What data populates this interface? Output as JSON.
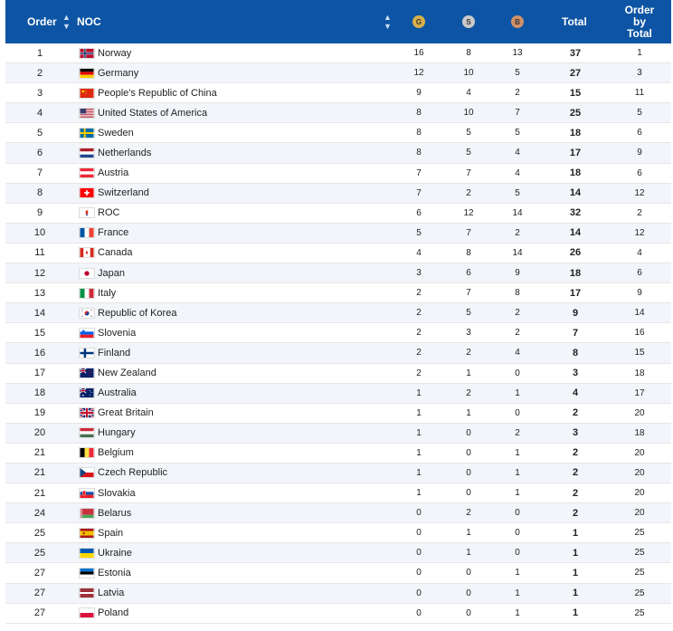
{
  "header": {
    "order": "Order",
    "noc": "NOC",
    "gold": "G",
    "silver": "S",
    "bronze": "B",
    "total": "Total",
    "order_by_total": "Order by Total",
    "sort_icon": "sort-icon"
  },
  "rows": [
    {
      "order": "1",
      "noc": "Norway",
      "g": "16",
      "s": "8",
      "b": "13",
      "total": "37",
      "obt": "1",
      "flag": "norway"
    },
    {
      "order": "2",
      "noc": "Germany",
      "g": "12",
      "s": "10",
      "b": "5",
      "total": "27",
      "obt": "3",
      "flag": "germany"
    },
    {
      "order": "3",
      "noc": "People's Republic of China",
      "g": "9",
      "s": "4",
      "b": "2",
      "total": "15",
      "obt": "11",
      "flag": "china"
    },
    {
      "order": "4",
      "noc": "United States of America",
      "g": "8",
      "s": "10",
      "b": "7",
      "total": "25",
      "obt": "5",
      "flag": "usa"
    },
    {
      "order": "5",
      "noc": "Sweden",
      "g": "8",
      "s": "5",
      "b": "5",
      "total": "18",
      "obt": "6",
      "flag": "sweden"
    },
    {
      "order": "6",
      "noc": "Netherlands",
      "g": "8",
      "s": "5",
      "b": "4",
      "total": "17",
      "obt": "9",
      "flag": "netherlands"
    },
    {
      "order": "7",
      "noc": "Austria",
      "g": "7",
      "s": "7",
      "b": "4",
      "total": "18",
      "obt": "6",
      "flag": "austria"
    },
    {
      "order": "8",
      "noc": "Switzerland",
      "g": "7",
      "s": "2",
      "b": "5",
      "total": "14",
      "obt": "12",
      "flag": "switzerland"
    },
    {
      "order": "9",
      "noc": "ROC",
      "g": "6",
      "s": "12",
      "b": "14",
      "total": "32",
      "obt": "2",
      "flag": "roc"
    },
    {
      "order": "10",
      "noc": "France",
      "g": "5",
      "s": "7",
      "b": "2",
      "total": "14",
      "obt": "12",
      "flag": "france"
    },
    {
      "order": "11",
      "noc": "Canada",
      "g": "4",
      "s": "8",
      "b": "14",
      "total": "26",
      "obt": "4",
      "flag": "canada"
    },
    {
      "order": "12",
      "noc": "Japan",
      "g": "3",
      "s": "6",
      "b": "9",
      "total": "18",
      "obt": "6",
      "flag": "japan"
    },
    {
      "order": "13",
      "noc": "Italy",
      "g": "2",
      "s": "7",
      "b": "8",
      "total": "17",
      "obt": "9",
      "flag": "italy"
    },
    {
      "order": "14",
      "noc": "Republic of Korea",
      "g": "2",
      "s": "5",
      "b": "2",
      "total": "9",
      "obt": "14",
      "flag": "korea"
    },
    {
      "order": "15",
      "noc": "Slovenia",
      "g": "2",
      "s": "3",
      "b": "2",
      "total": "7",
      "obt": "16",
      "flag": "slovenia"
    },
    {
      "order": "16",
      "noc": "Finland",
      "g": "2",
      "s": "2",
      "b": "4",
      "total": "8",
      "obt": "15",
      "flag": "finland"
    },
    {
      "order": "17",
      "noc": "New Zealand",
      "g": "2",
      "s": "1",
      "b": "0",
      "total": "3",
      "obt": "18",
      "flag": "newzealand"
    },
    {
      "order": "18",
      "noc": "Australia",
      "g": "1",
      "s": "2",
      "b": "1",
      "total": "4",
      "obt": "17",
      "flag": "australia"
    },
    {
      "order": "19",
      "noc": "Great Britain",
      "g": "1",
      "s": "1",
      "b": "0",
      "total": "2",
      "obt": "20",
      "flag": "gb"
    },
    {
      "order": "20",
      "noc": "Hungary",
      "g": "1",
      "s": "0",
      "b": "2",
      "total": "3",
      "obt": "18",
      "flag": "hungary"
    },
    {
      "order": "21",
      "noc": "Belgium",
      "g": "1",
      "s": "0",
      "b": "1",
      "total": "2",
      "obt": "20",
      "flag": "belgium"
    },
    {
      "order": "21",
      "noc": "Czech Republic",
      "g": "1",
      "s": "0",
      "b": "1",
      "total": "2",
      "obt": "20",
      "flag": "czech"
    },
    {
      "order": "21",
      "noc": "Slovakia",
      "g": "1",
      "s": "0",
      "b": "1",
      "total": "2",
      "obt": "20",
      "flag": "slovakia"
    },
    {
      "order": "24",
      "noc": "Belarus",
      "g": "0",
      "s": "2",
      "b": "0",
      "total": "2",
      "obt": "20",
      "flag": "belarus"
    },
    {
      "order": "25",
      "noc": "Spain",
      "g": "0",
      "s": "1",
      "b": "0",
      "total": "1",
      "obt": "25",
      "flag": "spain"
    },
    {
      "order": "25",
      "noc": "Ukraine",
      "g": "0",
      "s": "1",
      "b": "0",
      "total": "1",
      "obt": "25",
      "flag": "ukraine"
    },
    {
      "order": "27",
      "noc": "Estonia",
      "g": "0",
      "s": "0",
      "b": "1",
      "total": "1",
      "obt": "25",
      "flag": "estonia"
    },
    {
      "order": "27",
      "noc": "Latvia",
      "g": "0",
      "s": "0",
      "b": "1",
      "total": "1",
      "obt": "25",
      "flag": "latvia"
    },
    {
      "order": "27",
      "noc": "Poland",
      "g": "0",
      "s": "0",
      "b": "1",
      "total": "1",
      "obt": "25",
      "flag": "poland"
    }
  ],
  "colors": {
    "header_bg": "#0d55a4",
    "gold": "#d9b04a",
    "silver": "#c9c9c9",
    "bronze": "#cf9168",
    "alt_row": "#f2f5f9"
  }
}
